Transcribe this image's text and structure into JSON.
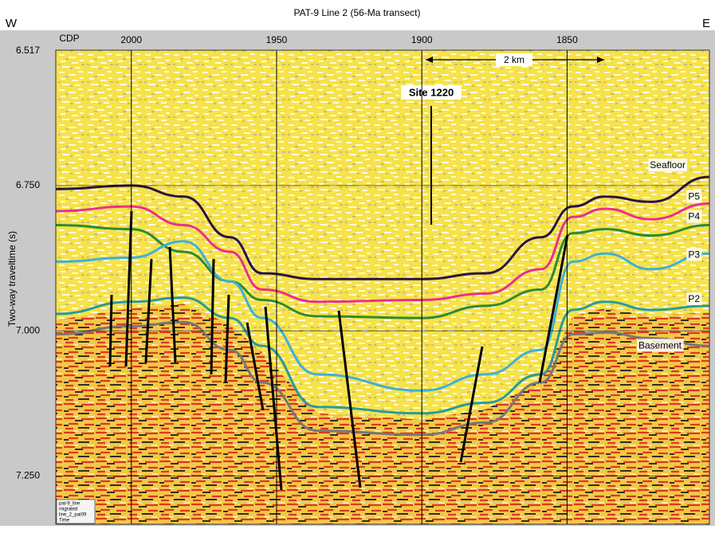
{
  "chart_data": {
    "type": "seismic-section",
    "title": "PAT-9 Line 2 (56-Ma transect)",
    "west_label": "W",
    "east_label": "E",
    "x_label": "CDP",
    "y_label": "Two-way traveltime (s)",
    "xlim": [
      2026,
      1801
    ],
    "ylim": [
      7.333,
      6.517
    ],
    "xticks": [
      2000,
      1950,
      1900,
      1850
    ],
    "yticks": [
      6.517,
      {
        "value": 6.75,
        "label": "6.750"
      },
      {
        "value": 7,
        "label": "7.000"
      },
      {
        "value": 7.25,
        "label": "7.250"
      }
    ],
    "grid": true,
    "x": [
      2026,
      2000,
      1982,
      1966,
      1955,
      1936,
      1900,
      1878,
      1859,
      1848,
      1837,
      1821,
      1801
    ],
    "series": [
      {
        "name": "Seafloor",
        "color": "#2a1440",
        "values": [
          6.756,
          6.75,
          6.769,
          6.839,
          6.901,
          6.911,
          6.911,
          6.901,
          6.839,
          6.786,
          6.769,
          6.778,
          6.735
        ]
      },
      {
        "name": "P5",
        "color": "#ec2f8a",
        "values": [
          6.794,
          6.786,
          6.818,
          6.864,
          6.929,
          6.95,
          6.947,
          6.936,
          6.894,
          6.804,
          6.79,
          6.808,
          6.781
        ]
      },
      {
        "name": "P4",
        "color": "#2e8b2e",
        "values": [
          6.818,
          6.825,
          6.864,
          6.915,
          6.947,
          6.975,
          6.978,
          6.957,
          6.929,
          6.832,
          6.825,
          6.836,
          6.818
        ]
      },
      {
        "name": "P3",
        "color": "#3fb0d6",
        "values": [
          6.881,
          6.874,
          6.846,
          6.915,
          6.978,
          7.075,
          7.103,
          7.075,
          7.033,
          6.881,
          6.867,
          6.894,
          6.867
        ]
      },
      {
        "name": "P2",
        "color": "#2a9a9a",
        "values": [
          6.971,
          6.95,
          6.943,
          6.978,
          7.026,
          7.131,
          7.142,
          7.124,
          7.075,
          6.964,
          6.95,
          6.964,
          6.957
        ]
      },
      {
        "name": "Basement",
        "color": "#777777",
        "values": [
          7.006,
          6.992,
          6.985,
          7.033,
          7.089,
          7.172,
          7.179,
          7.158,
          7.089,
          7.006,
          7.003,
          7.013,
          7.026
        ]
      }
    ],
    "annotations": {
      "site": "Site 1220",
      "scale_bar": "2 km",
      "info_box": [
        "pat-9_line",
        "migrated",
        "line_2_pat09",
        "Time"
      ]
    }
  }
}
